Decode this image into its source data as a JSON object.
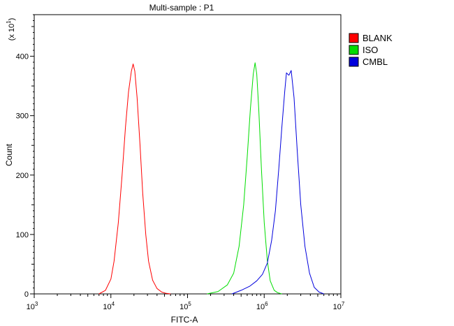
{
  "chart_data": {
    "type": "line",
    "title": "Multi-sample : P1",
    "xlabel": "FITC-A",
    "ylabel": "Count",
    "y_multiplier_label": "(x 10^1)",
    "x_scale": "log",
    "xlim": [
      1000,
      10000000
    ],
    "ylim": [
      0,
      47
    ],
    "x_ticks": [
      {
        "base": "10",
        "exp": "3",
        "value": 1000
      },
      {
        "base": "10",
        "exp": "4",
        "value": 10000
      },
      {
        "base": "10",
        "exp": "5",
        "value": 100000
      },
      {
        "base": "10",
        "exp": "6",
        "value": 1000000
      },
      {
        "base": "10",
        "exp": "7",
        "value": 10000000
      }
    ],
    "y_ticks": [
      {
        "label": "0",
        "value": 0
      },
      {
        "label": "100",
        "value": 10
      },
      {
        "label": "200",
        "value": 20
      },
      {
        "label": "300",
        "value": 30
      },
      {
        "label": "400",
        "value": 40
      }
    ],
    "grid": false,
    "legend_position": "top-right",
    "series": [
      {
        "name": "BLANK",
        "color": "#ff0000",
        "x": [
          7000,
          8500,
          10000,
          11000,
          12500,
          14000,
          15500,
          17000,
          18500,
          19500,
          20500,
          22000,
          24000,
          26000,
          28500,
          31000,
          35000,
          40000,
          46000,
          52000,
          60000
        ],
        "y": [
          0,
          0.6,
          2.5,
          5.5,
          12,
          20,
          28,
          34,
          37.5,
          38.7,
          37.5,
          33,
          25,
          17,
          10,
          5.5,
          2.3,
          0.9,
          0.3,
          0.1,
          0
        ]
      },
      {
        "name": "ISO",
        "color": "#00dd00",
        "x": [
          180000,
          250000,
          330000,
          400000,
          470000,
          540000,
          600000,
          660000,
          720000,
          760000,
          800000,
          850000,
          920000,
          1000000,
          1100000,
          1200000,
          1350000,
          1500000,
          1700000
        ],
        "y": [
          0,
          0.4,
          1.5,
          3.5,
          8,
          15,
          23,
          31,
          37,
          38.9,
          37,
          31,
          21,
          12,
          5.5,
          2.2,
          0.6,
          0.2,
          0
        ]
      },
      {
        "name": "CMBL",
        "color": "#0000dd",
        "x": [
          380000,
          500000,
          650000,
          800000,
          950000,
          1100000,
          1250000,
          1400000,
          1550000,
          1700000,
          1850000,
          1950000,
          2100000,
          2250000,
          2450000,
          2700000,
          3000000,
          3400000,
          3900000,
          4500000,
          5200000,
          6000000
        ],
        "y": [
          0,
          0.6,
          1.3,
          2.2,
          3.3,
          5.2,
          9,
          14,
          21,
          28,
          34,
          37.2,
          36.8,
          37.6,
          33,
          24,
          15,
          8,
          3.5,
          1.1,
          0.3,
          0
        ]
      }
    ]
  }
}
